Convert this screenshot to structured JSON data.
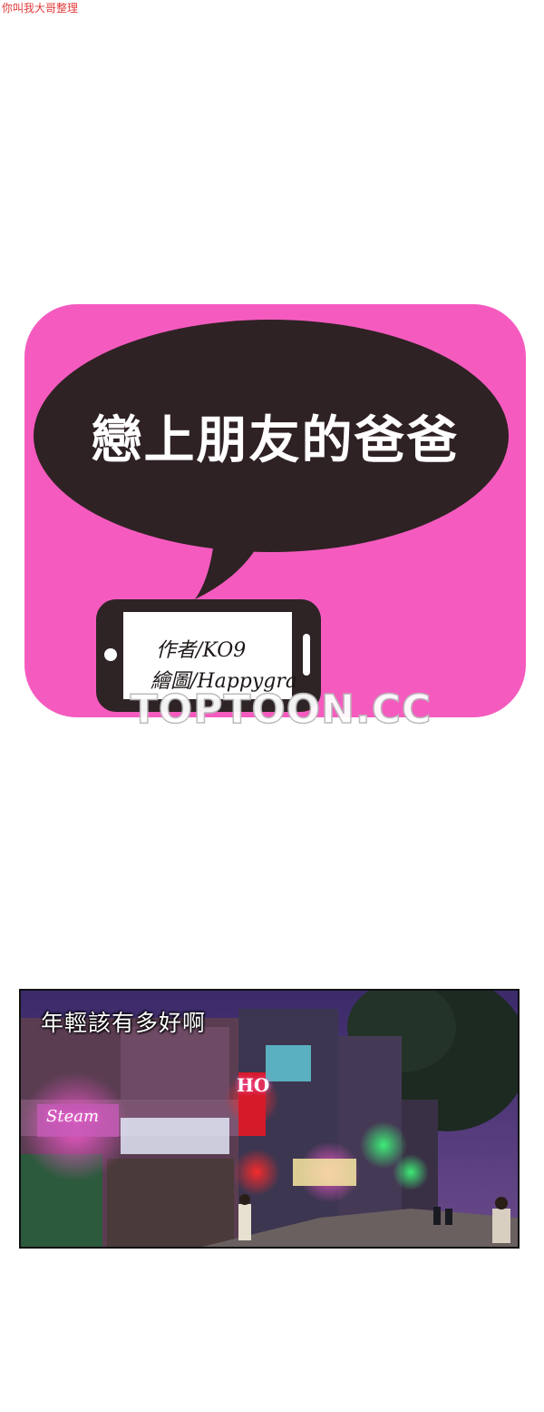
{
  "uploader_text": "你叫我大哥整理",
  "title_card": {
    "title": "戀上朋友的爸爸",
    "credits": {
      "author": "作者/KO9",
      "artist": "繪圖/Happygra"
    },
    "colors": {
      "background": "#f55bbf",
      "bubble": "#2f2224",
      "phone": "#2e2425"
    }
  },
  "watermark": "TOPTOON.CC",
  "panel": {
    "caption": "年輕該有多好啊",
    "signs": {
      "steam": "Steam",
      "ho": "HO"
    }
  }
}
